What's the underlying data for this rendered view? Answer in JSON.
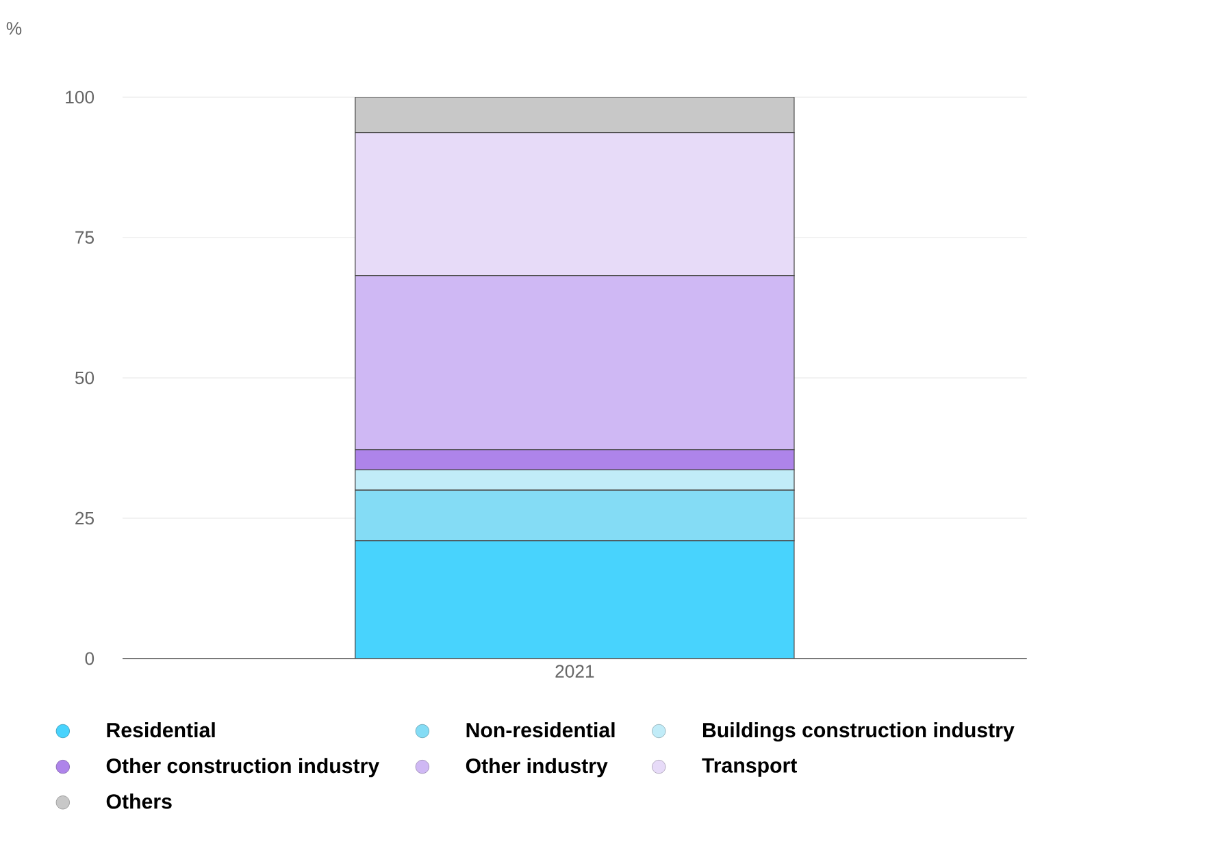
{
  "chart_data": {
    "type": "bar",
    "stacked": true,
    "ylabel": "%",
    "categories": [
      "2021"
    ],
    "ylim": [
      0,
      100
    ],
    "yticks": [
      0,
      25,
      50,
      75,
      100
    ],
    "grid": "y",
    "legend": "bottom",
    "series": [
      {
        "name": "Residential",
        "color": "#48d3fd",
        "values": [
          21
        ]
      },
      {
        "name": "Non-residential",
        "color": "#84dcf5",
        "values": [
          9
        ]
      },
      {
        "name": "Buildings construction industry",
        "color": "#c1ecf8",
        "values": [
          3.6
        ]
      },
      {
        "name": "Other construction industry",
        "color": "#ae84ea",
        "values": [
          3.6
        ]
      },
      {
        "name": "Other industry",
        "color": "#cfb8f4",
        "values": [
          31
        ]
      },
      {
        "name": "Transport",
        "color": "#e7dbf8",
        "values": [
          25.5
        ]
      },
      {
        "name": "Others",
        "color": "#c8c8c8",
        "values": [
          6.3
        ]
      }
    ]
  }
}
